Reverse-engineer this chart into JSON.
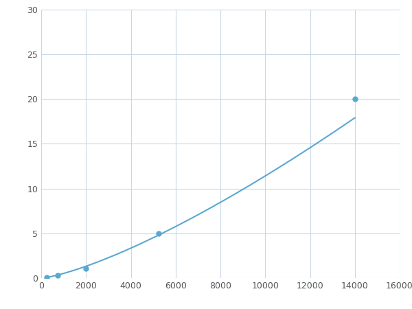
{
  "x_points": [
    250,
    750,
    2000,
    5250,
    14000
  ],
  "y_points": [
    0.1,
    0.3,
    1.1,
    5.0,
    20.0
  ],
  "line_color": "#5aa8d0",
  "marker_color": "#5aa8d0",
  "marker_size": 5,
  "line_width": 1.5,
  "xlim": [
    0,
    16000
  ],
  "ylim": [
    0,
    30
  ],
  "xticks": [
    0,
    2000,
    4000,
    6000,
    8000,
    10000,
    12000,
    14000,
    16000
  ],
  "yticks": [
    0,
    5,
    10,
    15,
    20,
    25,
    30
  ],
  "grid_color": "#c8d8e8",
  "background_color": "#ffffff",
  "fig_width": 6.0,
  "fig_height": 4.5
}
